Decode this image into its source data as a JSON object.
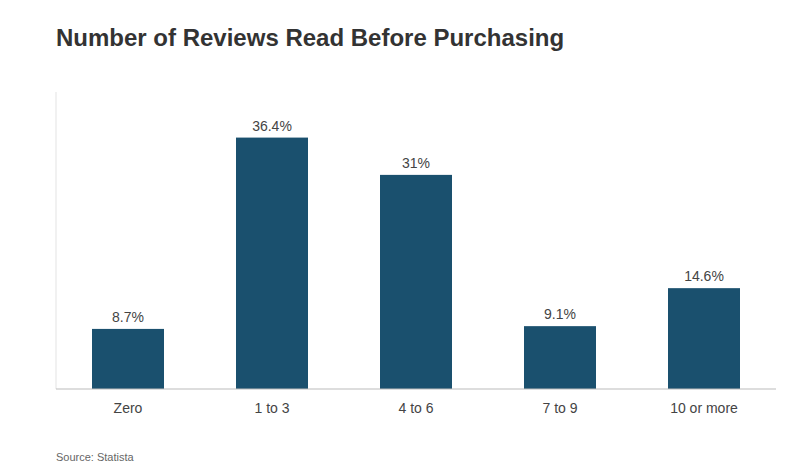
{
  "chart_data": {
    "type": "bar",
    "title": "Number of Reviews Read Before Purchasing",
    "categories": [
      "Zero",
      "1 to 3",
      "4 to 6",
      "7 to 9",
      "10 or more"
    ],
    "values": [
      8.7,
      36.4,
      31.0,
      9.1,
      14.6
    ],
    "value_labels": [
      "8.7%",
      "36.4%",
      "31%",
      "9.1%",
      "14.6%"
    ],
    "color": "#1a506e",
    "ylim": [
      0,
      43
    ],
    "data_labels": true,
    "tick_labels": "x",
    "annotations": [
      "Source: Statista"
    ]
  }
}
